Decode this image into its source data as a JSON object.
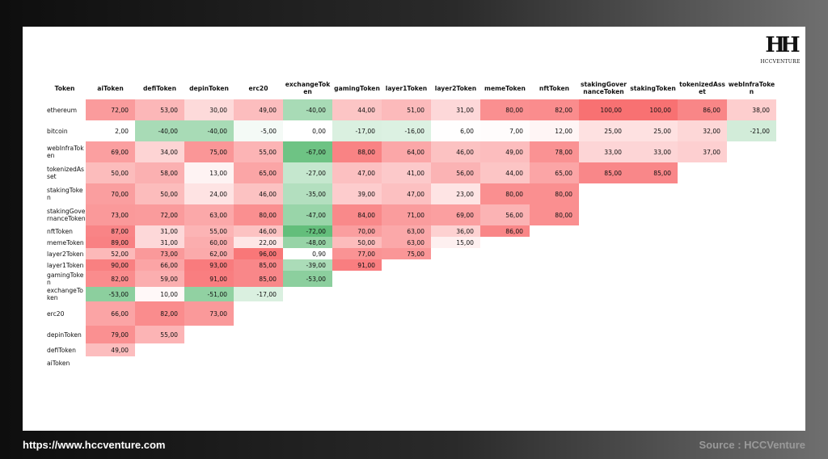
{
  "logo": {
    "text": "HCCVENTURE"
  },
  "footer": {
    "url": "https://www.hccventure.com",
    "source": "Source : HCCVenture"
  },
  "chart_data": {
    "type": "heatmap",
    "corner_label": "Token",
    "columns": [
      "aiToken",
      "defiToken",
      "depinToken",
      "erc20",
      "exchangeToken",
      "gamingToken",
      "layer1Token",
      "layer2Token",
      "memeToken",
      "nftToken",
      "stakingGovernanceToken",
      "stakingToken",
      "tokenizedAsset",
      "webInfraToken"
    ],
    "rows": [
      {
        "label": "ethereum",
        "values": [
          "72,00",
          "53,00",
          "30,00",
          "49,00",
          "-40,00",
          "44,00",
          "51,00",
          "31,00",
          "80,00",
          "82,00",
          "100,00",
          "100,00",
          "86,00",
          "38,00"
        ]
      },
      {
        "label": "bitcoin",
        "values": [
          "2,00",
          "-40,00",
          "-40,00",
          "-5,00",
          "0,00",
          "-17,00",
          "-16,00",
          "6,00",
          "7,00",
          "12,00",
          "25,00",
          "25,00",
          "32,00",
          "-21,00"
        ]
      },
      {
        "label": "webInfraToken",
        "values": [
          "69,00",
          "34,00",
          "75,00",
          "55,00",
          "-67,00",
          "88,00",
          "64,00",
          "46,00",
          "49,00",
          "78,00",
          "33,00",
          "33,00",
          "37,00"
        ]
      },
      {
        "label": "tokenizedAsset",
        "values": [
          "50,00",
          "58,00",
          "13,00",
          "65,00",
          "-27,00",
          "47,00",
          "41,00",
          "56,00",
          "44,00",
          "65,00",
          "85,00",
          "85,00"
        ]
      },
      {
        "label": "stakingToken",
        "values": [
          "70,00",
          "50,00",
          "24,00",
          "46,00",
          "-35,00",
          "39,00",
          "47,00",
          "23,00",
          "80,00",
          "80,00"
        ]
      },
      {
        "label": "stakingGovernanceToken",
        "values": [
          "73,00",
          "72,00",
          "63,00",
          "80,00",
          "-47,00",
          "84,00",
          "71,00",
          "69,00",
          "56,00",
          "80,00"
        ]
      },
      {
        "label": "nftToken",
        "values": [
          "87,00",
          "31,00",
          "55,00",
          "46,00",
          "-72,00",
          "70,00",
          "63,00",
          "36,00",
          "86,00"
        ]
      },
      {
        "label": "memeToken",
        "values": [
          "89,00",
          "31,00",
          "60,00",
          "22,00",
          "-48,00",
          "50,00",
          "63,00",
          "15,00"
        ]
      },
      {
        "label": "layer2Token",
        "values": [
          "52,00",
          "73,00",
          "62,00",
          "96,00",
          "0,90",
          "77,00",
          "75,00"
        ]
      },
      {
        "label": "layer1Token",
        "values": [
          "90,00",
          "66,00",
          "93,00",
          "85,00",
          "-39,00",
          "91,00"
        ]
      },
      {
        "label": "gamingToken",
        "values": [
          "82,00",
          "59,00",
          "91,00",
          "85,00",
          "-53,00"
        ]
      },
      {
        "label": "exchangeToken",
        "values": [
          "-53,00",
          "10,00",
          "-51,00",
          "-17,00"
        ]
      },
      {
        "label": "erc20",
        "values": [
          "66,00",
          "82,00",
          "73,00"
        ]
      },
      {
        "label": "depinToken",
        "values": [
          "79,00",
          "55,00"
        ]
      },
      {
        "label": "defiToken",
        "values": [
          "49,00"
        ]
      },
      {
        "label": "aiToken",
        "values": []
      }
    ],
    "color_scale": {
      "negative": "#63be7b",
      "zero": "#ffffff",
      "positive": "#f8696b"
    },
    "grid": false,
    "legend": "none"
  }
}
